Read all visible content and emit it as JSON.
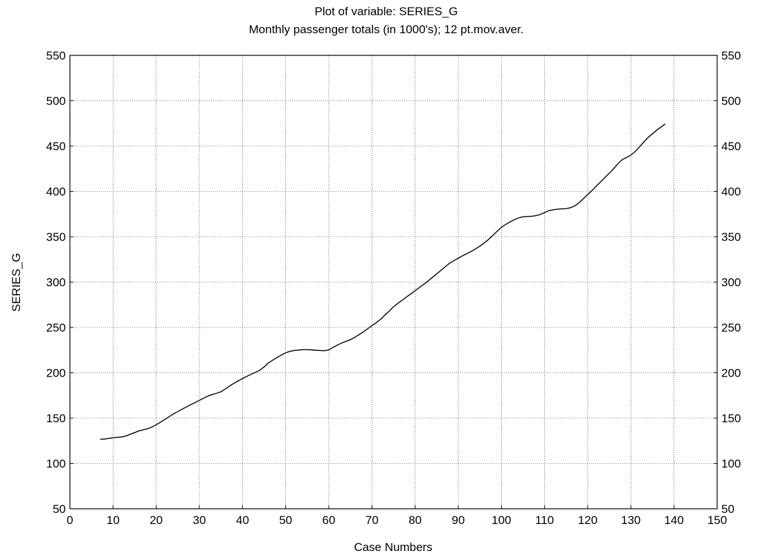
{
  "chart_data": {
    "type": "line",
    "title": "Plot of variable: SERIES_G",
    "subtitle": "Monthly passenger totals (in 1000's); 12 pt.mov.aver.",
    "xlabel": "Case Numbers",
    "ylabel": "SERIES_G",
    "xlim": [
      0,
      150
    ],
    "ylim": [
      50,
      550
    ],
    "x_ticks": [
      0,
      10,
      20,
      30,
      40,
      50,
      60,
      70,
      80,
      90,
      100,
      110,
      120,
      130,
      140,
      150
    ],
    "y_ticks": [
      50,
      100,
      150,
      200,
      250,
      300,
      350,
      400,
      450,
      500,
      550
    ],
    "y_ticks_right": true,
    "grid": true,
    "line_color": "#000000",
    "series": [
      {
        "x": [
          7,
          8,
          9,
          10,
          11,
          12,
          13,
          14,
          15,
          16,
          17,
          18,
          19,
          20,
          21,
          22,
          23,
          24,
          25,
          26,
          27,
          28,
          29,
          30,
          31,
          32,
          33,
          34,
          35,
          36,
          37,
          38,
          39,
          40,
          41,
          42,
          43,
          44,
          45,
          46,
          47,
          48,
          49,
          50,
          51,
          52,
          53,
          54,
          55,
          56,
          57,
          58,
          59,
          60,
          61,
          62,
          63,
          64,
          65,
          66,
          67,
          68,
          69,
          70,
          71,
          72,
          73,
          74,
          75,
          76,
          77,
          78,
          79,
          80,
          81,
          82,
          83,
          84,
          85,
          86,
          87,
          88,
          89,
          90,
          91,
          92,
          93,
          94,
          95,
          96,
          97,
          98,
          99,
          100,
          101,
          102,
          103,
          104,
          105,
          106,
          107,
          108,
          109,
          110,
          111,
          112,
          113,
          114,
          115,
          116,
          117,
          118,
          119,
          120,
          121,
          122,
          123,
          124,
          125,
          126,
          127,
          128,
          129,
          130,
          131,
          132,
          133,
          134,
          135,
          136,
          137,
          138
        ],
        "values": [
          126.7,
          126.9,
          127.6,
          128.3,
          128.8,
          129.2,
          130.3,
          132.2,
          134.0,
          135.8,
          137.1,
          138.3,
          140.1,
          142.7,
          145.5,
          148.5,
          151.6,
          154.6,
          157.2,
          159.8,
          162.3,
          164.8,
          167.1,
          169.6,
          172.0,
          174.3,
          176.0,
          177.4,
          179.0,
          182.0,
          185.3,
          188.4,
          191.0,
          193.6,
          196.1,
          198.4,
          200.5,
          202.8,
          206.4,
          210.8,
          213.9,
          216.8,
          219.5,
          222.0,
          223.6,
          224.6,
          225.0,
          225.5,
          225.5,
          225.2,
          224.8,
          224.5,
          224.3,
          225.2,
          228.0,
          230.5,
          232.8,
          234.6,
          236.5,
          239.0,
          242.0,
          245.1,
          248.5,
          252.0,
          255.2,
          259.0,
          263.6,
          268.0,
          272.8,
          276.5,
          280.0,
          283.5,
          287.0,
          290.5,
          294.0,
          297.5,
          301.2,
          305.1,
          309.0,
          313.0,
          317.0,
          320.8,
          323.6,
          326.4,
          329.0,
          331.4,
          333.8,
          336.6,
          339.6,
          343.0,
          347.0,
          351.4,
          356.0,
          360.5,
          363.6,
          366.4,
          368.8,
          370.8,
          372.0,
          372.4,
          372.6,
          373.2,
          374.5,
          376.6,
          378.8,
          379.8,
          380.4,
          380.8,
          381.0,
          382.0,
          384.0,
          387.5,
          392.0,
          396.5,
          401.0,
          405.8,
          410.6,
          415.4,
          420.0,
          425.0,
          430.5,
          435.0,
          437.5,
          440.0,
          444.0,
          449.0,
          454.5,
          459.5,
          463.5,
          467.5,
          471.0,
          474.5
        ]
      }
    ]
  }
}
